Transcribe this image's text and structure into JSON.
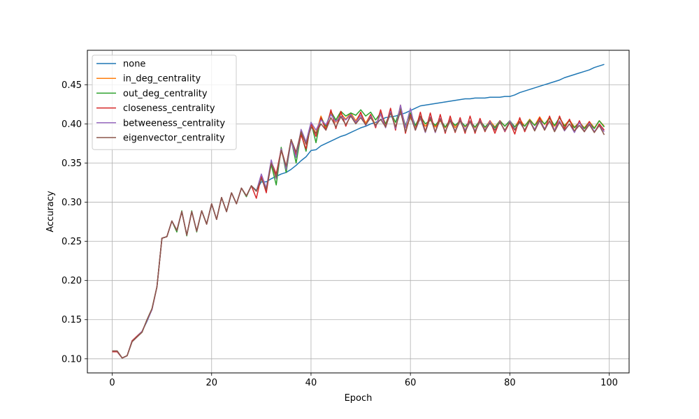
{
  "chart_data": {
    "type": "line",
    "title": "",
    "xlabel": "Epoch",
    "ylabel": "Accuracy",
    "xlim": [
      -5,
      104
    ],
    "ylim": [
      0.082,
      0.494
    ],
    "xticks": [
      0,
      20,
      40,
      60,
      80,
      100
    ],
    "xtick_labels": [
      "0",
      "20",
      "40",
      "60",
      "80",
      "100"
    ],
    "yticks": [
      0.1,
      0.15,
      0.2,
      0.25,
      0.3,
      0.35,
      0.4,
      0.45
    ],
    "ytick_labels": [
      "0.10",
      "0.15",
      "0.20",
      "0.25",
      "0.30",
      "0.35",
      "0.40",
      "0.45"
    ],
    "grid": true,
    "legend_position": "top-left",
    "series": [
      {
        "name": "none",
        "color": "#1f77b4",
        "values": [
          0.109,
          0.109,
          0.101,
          0.104,
          0.123,
          0.129,
          0.135,
          0.148,
          0.163,
          0.192,
          0.254,
          0.256,
          0.276,
          0.264,
          0.288,
          0.258,
          0.288,
          0.263,
          0.289,
          0.272,
          0.298,
          0.278,
          0.306,
          0.288,
          0.312,
          0.298,
          0.318,
          0.308,
          0.321,
          0.315,
          0.326,
          0.326,
          0.33,
          0.333,
          0.336,
          0.338,
          0.342,
          0.347,
          0.353,
          0.358,
          0.366,
          0.367,
          0.372,
          0.375,
          0.378,
          0.381,
          0.384,
          0.386,
          0.389,
          0.392,
          0.395,
          0.397,
          0.4,
          0.402,
          0.405,
          0.408,
          0.409,
          0.41,
          0.412,
          0.414,
          0.417,
          0.42,
          0.423,
          0.424,
          0.425,
          0.426,
          0.427,
          0.428,
          0.429,
          0.43,
          0.431,
          0.432,
          0.432,
          0.433,
          0.433,
          0.433,
          0.434,
          0.434,
          0.434,
          0.435,
          0.435,
          0.437,
          0.44,
          0.442,
          0.444,
          0.446,
          0.448,
          0.45,
          0.452,
          0.454,
          0.456,
          0.459,
          0.461,
          0.463,
          0.465,
          0.467,
          0.469,
          0.472,
          0.474,
          0.476
        ]
      },
      {
        "name": "in_deg_centrality",
        "color": "#ff7f0e",
        "values": [
          0.11,
          0.11,
          0.101,
          0.104,
          0.122,
          0.128,
          0.134,
          0.15,
          0.164,
          0.192,
          0.254,
          0.256,
          0.276,
          0.264,
          0.288,
          0.258,
          0.288,
          0.263,
          0.289,
          0.272,
          0.298,
          0.278,
          0.306,
          0.288,
          0.312,
          0.298,
          0.318,
          0.308,
          0.321,
          0.314,
          0.332,
          0.316,
          0.35,
          0.33,
          0.366,
          0.344,
          0.378,
          0.362,
          0.39,
          0.374,
          0.4,
          0.388,
          0.41,
          0.394,
          0.415,
          0.402,
          0.413,
          0.406,
          0.414,
          0.404,
          0.414,
          0.401,
          0.412,
          0.398,
          0.412,
          0.396,
          0.416,
          0.396,
          0.418,
          0.395,
          0.408,
          0.396,
          0.406,
          0.397,
          0.405,
          0.396,
          0.404,
          0.395,
          0.406,
          0.395,
          0.405,
          0.396,
          0.404,
          0.395,
          0.405,
          0.395,
          0.404,
          0.396,
          0.404,
          0.397,
          0.404,
          0.396,
          0.406,
          0.397,
          0.406,
          0.398,
          0.409,
          0.399,
          0.409,
          0.397,
          0.408,
          0.398,
          0.405,
          0.396,
          0.402,
          0.395,
          0.403,
          0.395,
          0.404,
          0.397
        ]
      },
      {
        "name": "out_deg_centrality",
        "color": "#2ca02c",
        "values": [
          0.11,
          0.11,
          0.101,
          0.104,
          0.122,
          0.128,
          0.134,
          0.15,
          0.164,
          0.192,
          0.254,
          0.256,
          0.276,
          0.262,
          0.289,
          0.257,
          0.289,
          0.262,
          0.289,
          0.272,
          0.298,
          0.278,
          0.306,
          0.288,
          0.312,
          0.298,
          0.318,
          0.307,
          0.321,
          0.314,
          0.33,
          0.316,
          0.348,
          0.322,
          0.37,
          0.338,
          0.38,
          0.35,
          0.388,
          0.365,
          0.402,
          0.376,
          0.408,
          0.397,
          0.416,
          0.405,
          0.416,
          0.41,
          0.414,
          0.411,
          0.418,
          0.41,
          0.415,
          0.405,
          0.414,
          0.4,
          0.415,
          0.402,
          0.42,
          0.398,
          0.414,
          0.398,
          0.41,
          0.4,
          0.405,
          0.398,
          0.406,
          0.396,
          0.405,
          0.398,
          0.404,
          0.397,
          0.403,
          0.396,
          0.404,
          0.396,
          0.402,
          0.395,
          0.404,
          0.397,
          0.404,
          0.396,
          0.403,
          0.397,
          0.405,
          0.398,
          0.406,
          0.4,
          0.407,
          0.398,
          0.408,
          0.397,
          0.404,
          0.395,
          0.402,
          0.394,
          0.402,
          0.394,
          0.404,
          0.396
        ]
      },
      {
        "name": "closeness_centrality",
        "color": "#d62728",
        "values": [
          0.109,
          0.109,
          0.101,
          0.104,
          0.123,
          0.129,
          0.135,
          0.149,
          0.163,
          0.192,
          0.254,
          0.256,
          0.276,
          0.264,
          0.288,
          0.258,
          0.288,
          0.263,
          0.289,
          0.272,
          0.298,
          0.278,
          0.306,
          0.288,
          0.312,
          0.298,
          0.318,
          0.308,
          0.321,
          0.305,
          0.333,
          0.312,
          0.352,
          0.336,
          0.368,
          0.346,
          0.38,
          0.36,
          0.386,
          0.368,
          0.4,
          0.384,
          0.408,
          0.392,
          0.418,
          0.394,
          0.416,
          0.397,
          0.412,
          0.401,
          0.415,
          0.398,
          0.412,
          0.395,
          0.418,
          0.396,
          0.42,
          0.392,
          0.424,
          0.388,
          0.412,
          0.392,
          0.415,
          0.39,
          0.414,
          0.389,
          0.412,
          0.388,
          0.41,
          0.389,
          0.408,
          0.388,
          0.41,
          0.388,
          0.407,
          0.39,
          0.404,
          0.388,
          0.404,
          0.39,
          0.402,
          0.387,
          0.408,
          0.39,
          0.404,
          0.392,
          0.408,
          0.392,
          0.41,
          0.391,
          0.41,
          0.394,
          0.406,
          0.39,
          0.404,
          0.39,
          0.403,
          0.389,
          0.4,
          0.392
        ]
      },
      {
        "name": "betweeness_centrality",
        "color": "#9467bd",
        "values": [
          0.11,
          0.11,
          0.101,
          0.104,
          0.122,
          0.128,
          0.135,
          0.149,
          0.163,
          0.192,
          0.254,
          0.256,
          0.276,
          0.264,
          0.288,
          0.258,
          0.288,
          0.263,
          0.289,
          0.272,
          0.298,
          0.278,
          0.306,
          0.288,
          0.312,
          0.298,
          0.318,
          0.308,
          0.321,
          0.314,
          0.336,
          0.318,
          0.354,
          0.33,
          0.368,
          0.342,
          0.378,
          0.357,
          0.393,
          0.377,
          0.402,
          0.392,
          0.405,
          0.399,
          0.412,
          0.403,
          0.41,
          0.405,
          0.412,
          0.402,
          0.411,
          0.398,
          0.41,
          0.397,
          0.413,
          0.395,
          0.416,
          0.394,
          0.424,
          0.395,
          0.42,
          0.392,
          0.408,
          0.389,
          0.409,
          0.389,
          0.407,
          0.39,
          0.405,
          0.391,
          0.405,
          0.392,
          0.404,
          0.391,
          0.404,
          0.392,
          0.403,
          0.392,
          0.403,
          0.391,
          0.404,
          0.393,
          0.402,
          0.392,
          0.404,
          0.393,
          0.405,
          0.394,
          0.403,
          0.392,
          0.404,
          0.391,
          0.4,
          0.389,
          0.402,
          0.39,
          0.401,
          0.39,
          0.398,
          0.39
        ]
      },
      {
        "name": "eigenvector_centrality",
        "color": "#8c564b",
        "values": [
          0.11,
          0.11,
          0.101,
          0.104,
          0.122,
          0.128,
          0.134,
          0.15,
          0.164,
          0.192,
          0.254,
          0.256,
          0.276,
          0.264,
          0.288,
          0.258,
          0.288,
          0.263,
          0.289,
          0.272,
          0.298,
          0.278,
          0.306,
          0.288,
          0.312,
          0.298,
          0.318,
          0.308,
          0.321,
          0.314,
          0.33,
          0.316,
          0.35,
          0.332,
          0.366,
          0.346,
          0.38,
          0.364,
          0.39,
          0.374,
          0.396,
          0.388,
          0.4,
          0.392,
          0.408,
          0.396,
          0.409,
          0.399,
          0.41,
          0.4,
          0.408,
          0.399,
          0.408,
          0.398,
          0.406,
          0.396,
          0.414,
          0.396,
          0.416,
          0.39,
          0.41,
          0.392,
          0.41,
          0.39,
          0.408,
          0.39,
          0.406,
          0.39,
          0.404,
          0.39,
          0.404,
          0.39,
          0.403,
          0.39,
          0.403,
          0.391,
          0.401,
          0.392,
          0.402,
          0.392,
          0.402,
          0.392,
          0.403,
          0.392,
          0.404,
          0.391,
          0.404,
          0.392,
          0.404,
          0.39,
          0.402,
          0.392,
          0.4,
          0.391,
          0.398,
          0.39,
          0.399,
          0.389,
          0.398,
          0.386
        ]
      }
    ]
  }
}
